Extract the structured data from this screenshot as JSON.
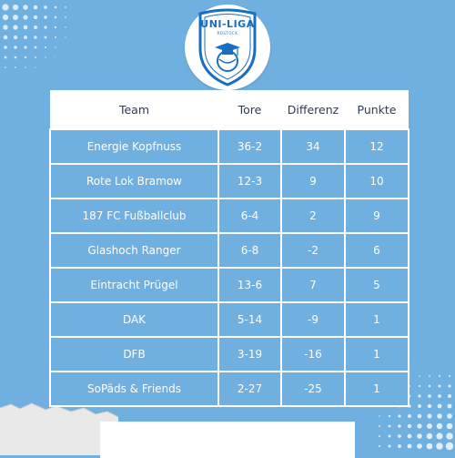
{
  "logo": {
    "title": "UNI-LIGA",
    "subtitle": "ROSTOCK"
  },
  "table": {
    "headers": [
      "Team",
      "Tore",
      "Differenz",
      "Punkte"
    ],
    "rows": [
      [
        "Energie Kopfnuss",
        "36-2",
        "34",
        "12"
      ],
      [
        "Rote Lok Bramow",
        "12-3",
        "9",
        "10"
      ],
      [
        "187 FC Fußballclub",
        "6-4",
        "2",
        "9"
      ],
      [
        "Glashoch Ranger",
        "6-8",
        "-2",
        "6"
      ],
      [
        "Eintracht Prügel",
        "13-6",
        "7",
        "5"
      ],
      [
        "DAK",
        "5-14",
        "-9",
        "1"
      ],
      [
        "DFB",
        "3-19",
        "-16",
        "1"
      ],
      [
        "SoPäds & Friends",
        "2-27",
        "-25",
        "1"
      ]
    ]
  },
  "colors": {
    "background": "#6fb0e0",
    "table_border": "#ffffff",
    "brand_blue": "#1a6fbd",
    "header_text": "#2f3b4c"
  }
}
